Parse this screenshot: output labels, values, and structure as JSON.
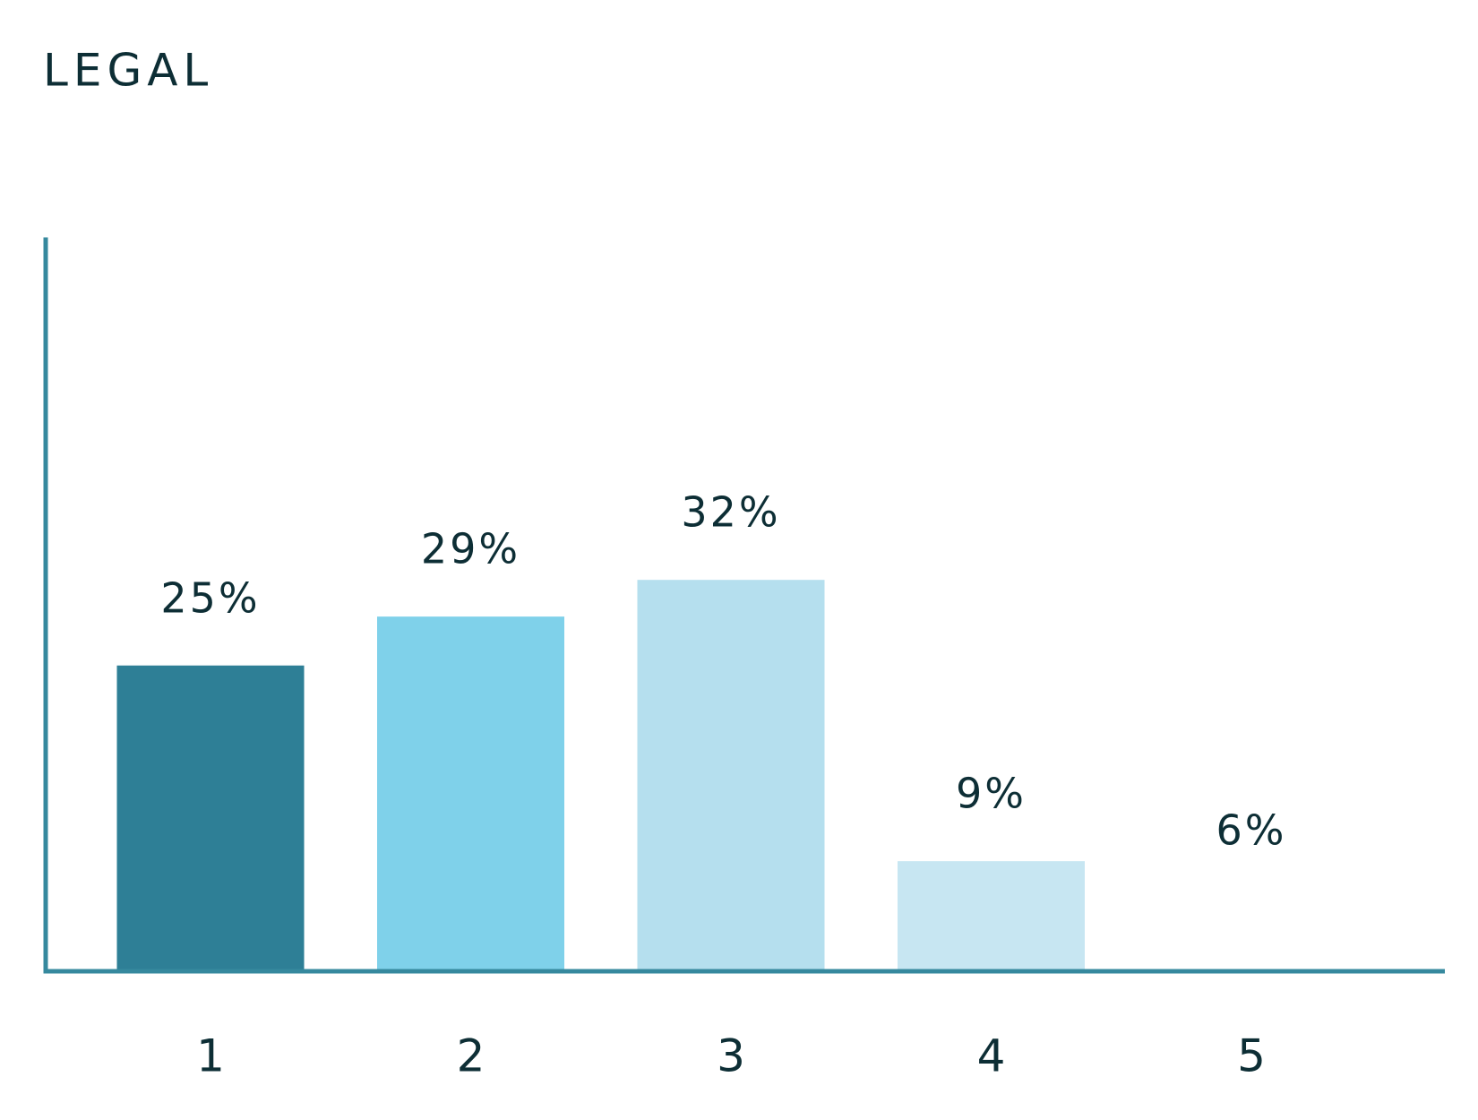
{
  "chart_data": {
    "type": "bar",
    "title": "LEGAL",
    "categories": [
      "1",
      "2",
      "3",
      "4",
      "5"
    ],
    "values": [
      25,
      29,
      32,
      9,
      6
    ],
    "value_labels": [
      "25%",
      "29%",
      "32%",
      "9%",
      "6%"
    ],
    "colors": [
      "#2e7f96",
      "#7fd1ea",
      "#b5dfee",
      "#c7e6f2",
      "#ffffff"
    ],
    "axis_color": "#36899e",
    "ylim": [
      0,
      60
    ]
  }
}
